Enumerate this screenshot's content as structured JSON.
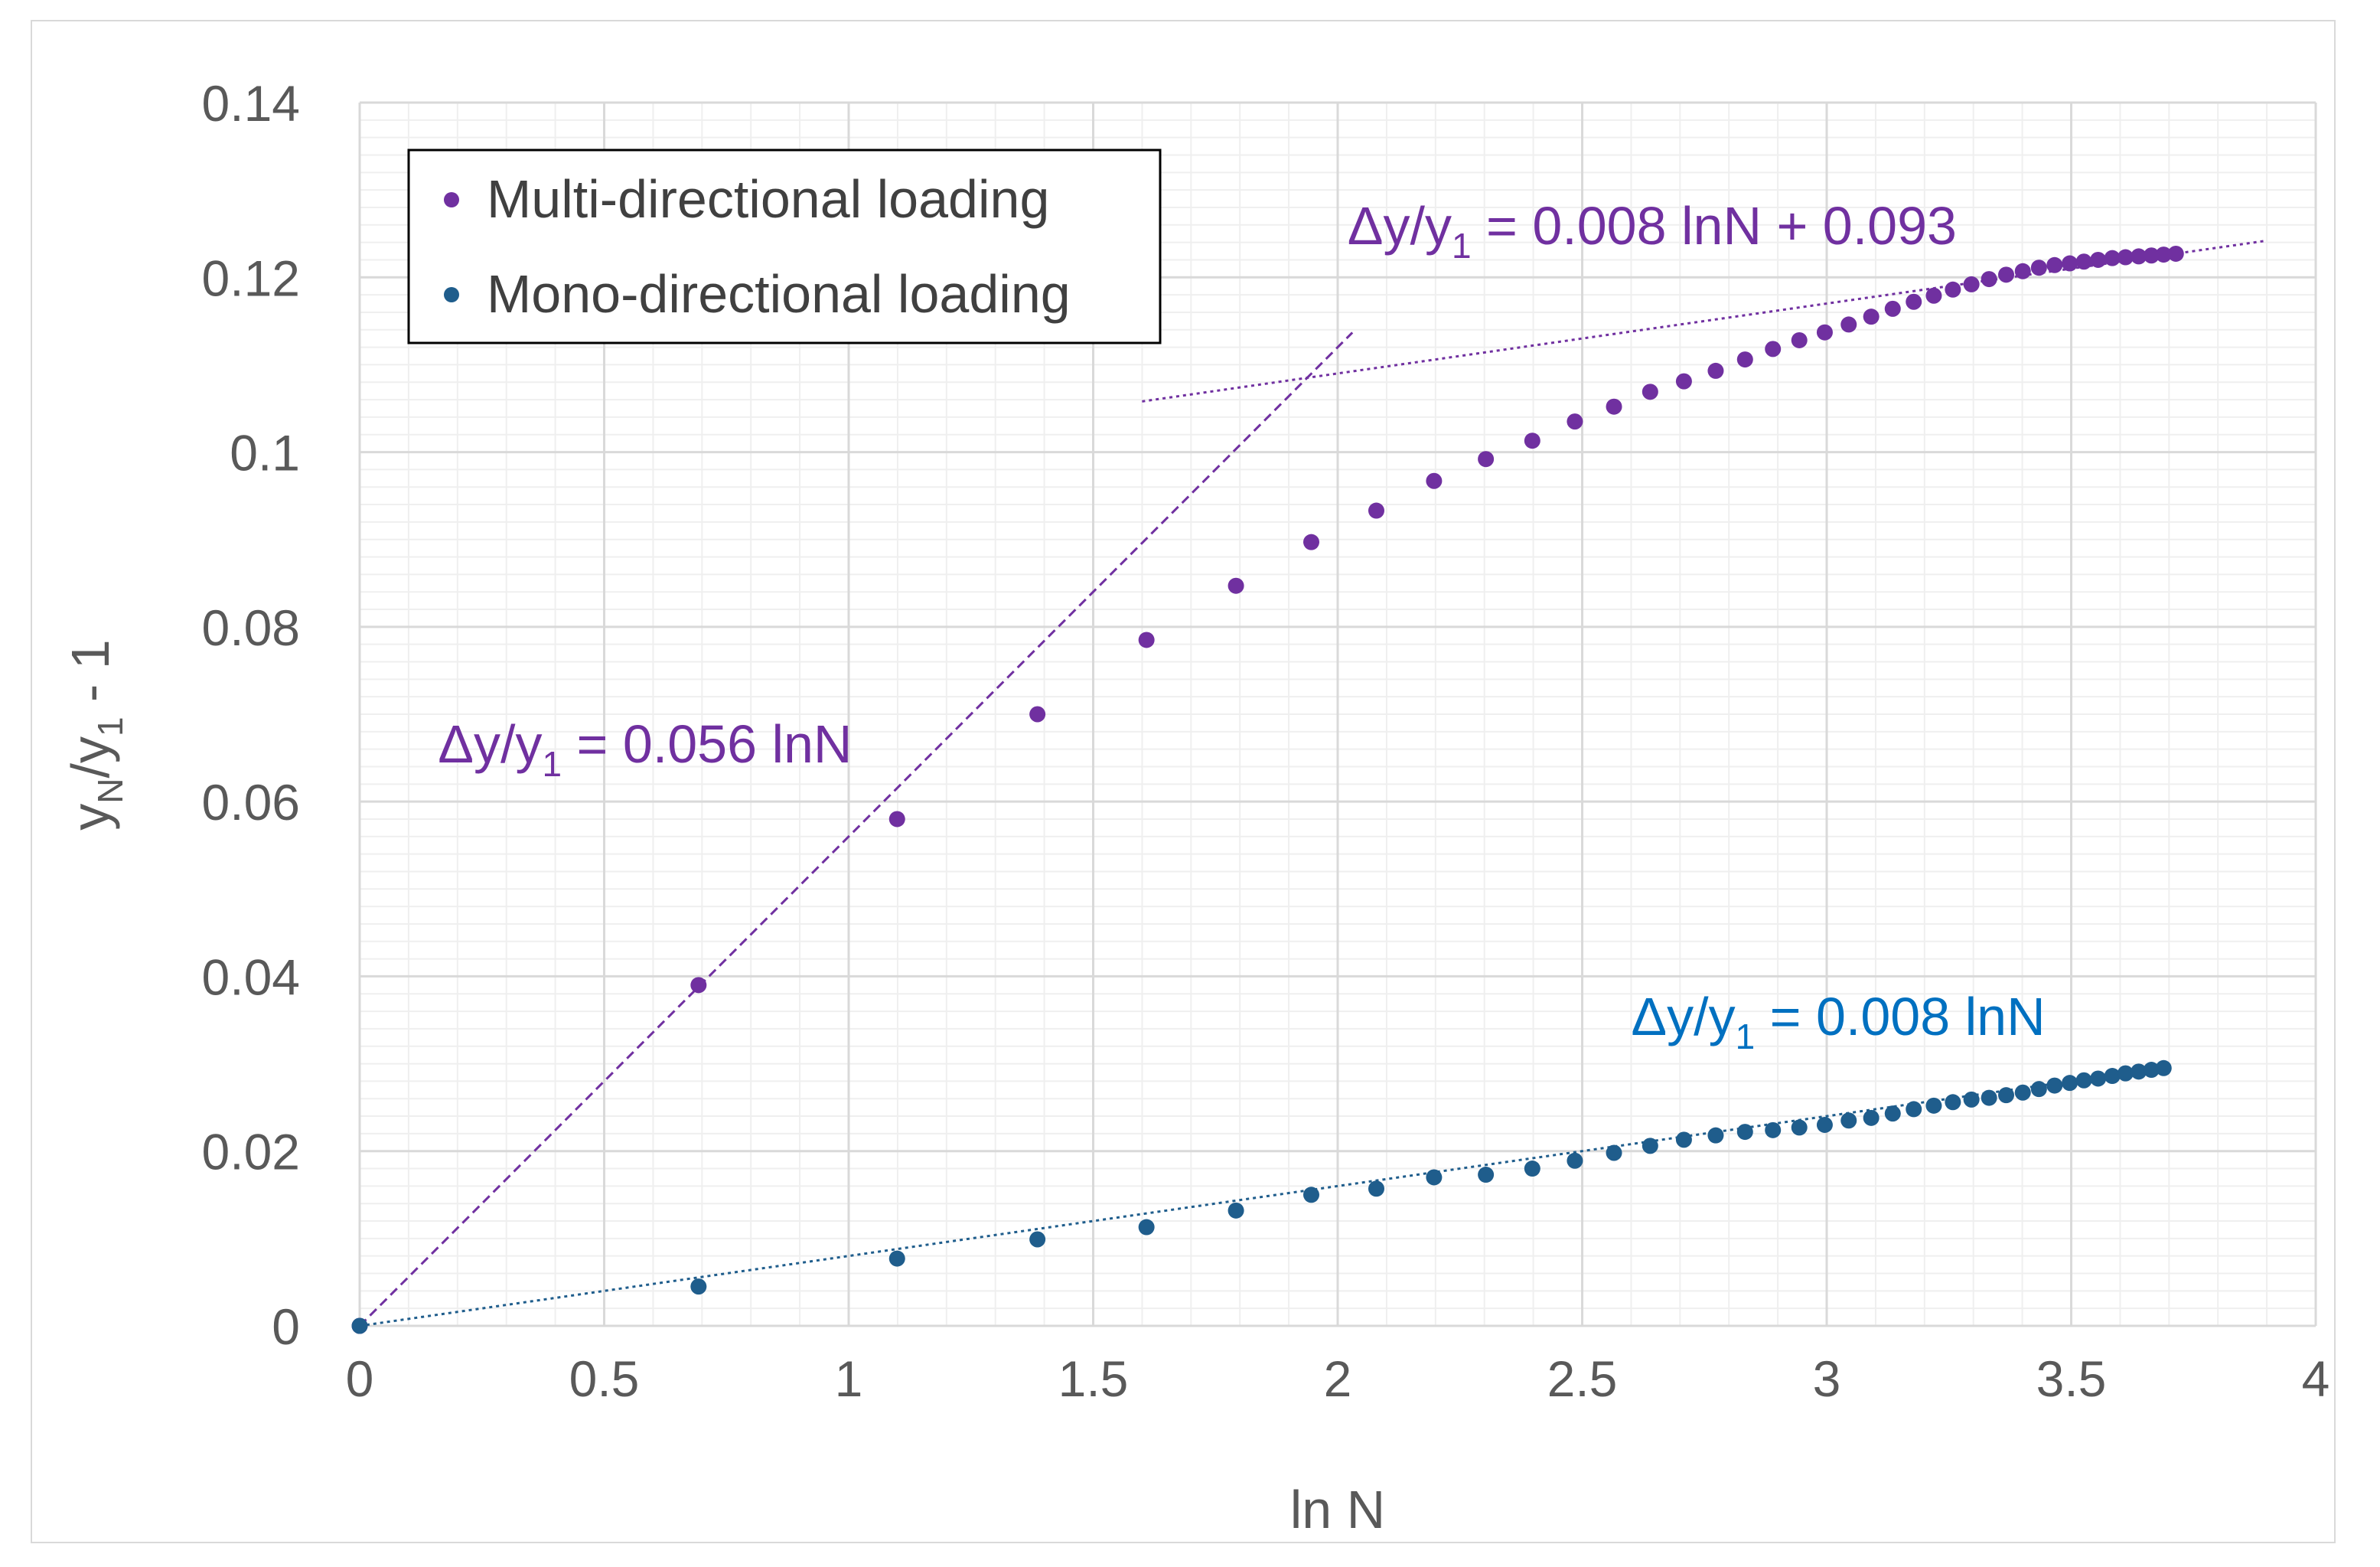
{
  "chart_data": {
    "type": "scatter",
    "title": "",
    "xlabel": "ln N",
    "ylabel_main": "y",
    "ylabel_sub_n": "N",
    "ylabel_mid": "/y",
    "ylabel_sub_1": "1",
    "ylabel_tail": " - 1",
    "xlim": [
      0,
      4
    ],
    "ylim": [
      0,
      0.14
    ],
    "x_ticks": [
      "0",
      "0.5",
      "1",
      "1.5",
      "2",
      "2.5",
      "3",
      "3.5",
      "4"
    ],
    "y_ticks": [
      "0",
      "0.02",
      "0.04",
      "0.06",
      "0.08",
      "0.1",
      "0.12",
      "0.14"
    ],
    "grid": true,
    "legend_position": "top-left",
    "colors": {
      "multi": "#7030a0",
      "mono": "#1f5d8c",
      "mono_label": "#0070c0",
      "grid_major": "#d9d9d9",
      "grid_minor": "#efefef"
    },
    "series": [
      {
        "name": "Multi-directional loading",
        "key": "multi",
        "x": [
          0,
          0.693,
          1.099,
          1.386,
          1.609,
          1.792,
          1.946,
          2.079,
          2.197,
          2.303,
          2.398,
          2.485,
          2.565,
          2.639,
          2.708,
          2.773,
          2.833,
          2.89,
          2.944,
          2.996,
          3.045,
          3.091,
          3.135,
          3.178,
          3.219,
          3.258,
          3.296,
          3.332,
          3.367,
          3.401,
          3.434,
          3.466,
          3.497,
          3.526,
          3.555,
          3.584,
          3.611,
          3.638,
          3.664,
          3.689,
          3.714
        ],
        "y": [
          0,
          0.039,
          0.058,
          0.07,
          0.0785,
          0.0847,
          0.0897,
          0.0933,
          0.0967,
          0.0992,
          0.1013,
          0.1035,
          0.1052,
          0.1069,
          0.1081,
          0.1093,
          0.1106,
          0.1118,
          0.1128,
          0.1137,
          0.1146,
          0.1155,
          0.1164,
          0.1172,
          0.1179,
          0.1186,
          0.1192,
          0.1198,
          0.1203,
          0.1207,
          0.1211,
          0.1214,
          0.1216,
          0.1218,
          0.122,
          0.1222,
          0.1223,
          0.1224,
          0.1225,
          0.1226,
          0.1227
        ]
      },
      {
        "name": "Mono-directional loading",
        "key": "mono",
        "x": [
          0,
          0.693,
          1.099,
          1.386,
          1.609,
          1.792,
          1.946,
          2.079,
          2.197,
          2.303,
          2.398,
          2.485,
          2.565,
          2.639,
          2.708,
          2.773,
          2.833,
          2.89,
          2.944,
          2.996,
          3.045,
          3.091,
          3.135,
          3.178,
          3.219,
          3.258,
          3.296,
          3.332,
          3.367,
          3.401,
          3.434,
          3.466,
          3.497,
          3.526,
          3.555,
          3.584,
          3.611,
          3.638,
          3.664,
          3.689
        ],
        "y": [
          0,
          0.0045,
          0.0077,
          0.0099,
          0.0113,
          0.0132,
          0.015,
          0.0157,
          0.017,
          0.0173,
          0.018,
          0.0189,
          0.0198,
          0.0206,
          0.0213,
          0.0218,
          0.0222,
          0.0224,
          0.0227,
          0.023,
          0.0235,
          0.0238,
          0.0243,
          0.0248,
          0.0252,
          0.0256,
          0.0259,
          0.0261,
          0.0264,
          0.0267,
          0.0271,
          0.0275,
          0.0278,
          0.0281,
          0.0283,
          0.0286,
          0.0289,
          0.0291,
          0.0293,
          0.0295
        ]
      }
    ],
    "trendlines": [
      {
        "key": "multi-initial",
        "color_key": "multi",
        "style": "dashed",
        "x0": 0,
        "x1": 2.03,
        "slope": 0.056,
        "intercept": 0
      },
      {
        "key": "multi-late",
        "color_key": "multi",
        "style": "dotted",
        "x0": 1.6,
        "x1": 3.9,
        "slope": 0.008,
        "intercept": 0.093
      },
      {
        "key": "mono",
        "color_key": "mono",
        "style": "dotted",
        "x0": 0,
        "x1": 3.69,
        "slope": 0.008,
        "intercept": 0
      }
    ],
    "annotations": [
      {
        "key": "eq-multi-late",
        "color_key": "multi",
        "pre": "Δy/y",
        "sub": "1",
        "post": " = 0.008 lnN + 0.093",
        "at_x": 2.02,
        "at_y": 0.1238
      },
      {
        "key": "eq-multi-initial",
        "color_key": "multi",
        "pre": "Δy/y",
        "sub": "1",
        "post": " = 0.056 lnN",
        "at_x": 0.16,
        "at_y": 0.0645
      },
      {
        "key": "eq-mono",
        "color_key": "mono_label",
        "pre": "Δy/y",
        "sub": "1",
        "post": "  = 0.008 lnN",
        "at_x": 2.6,
        "at_y": 0.0333
      }
    ]
  }
}
